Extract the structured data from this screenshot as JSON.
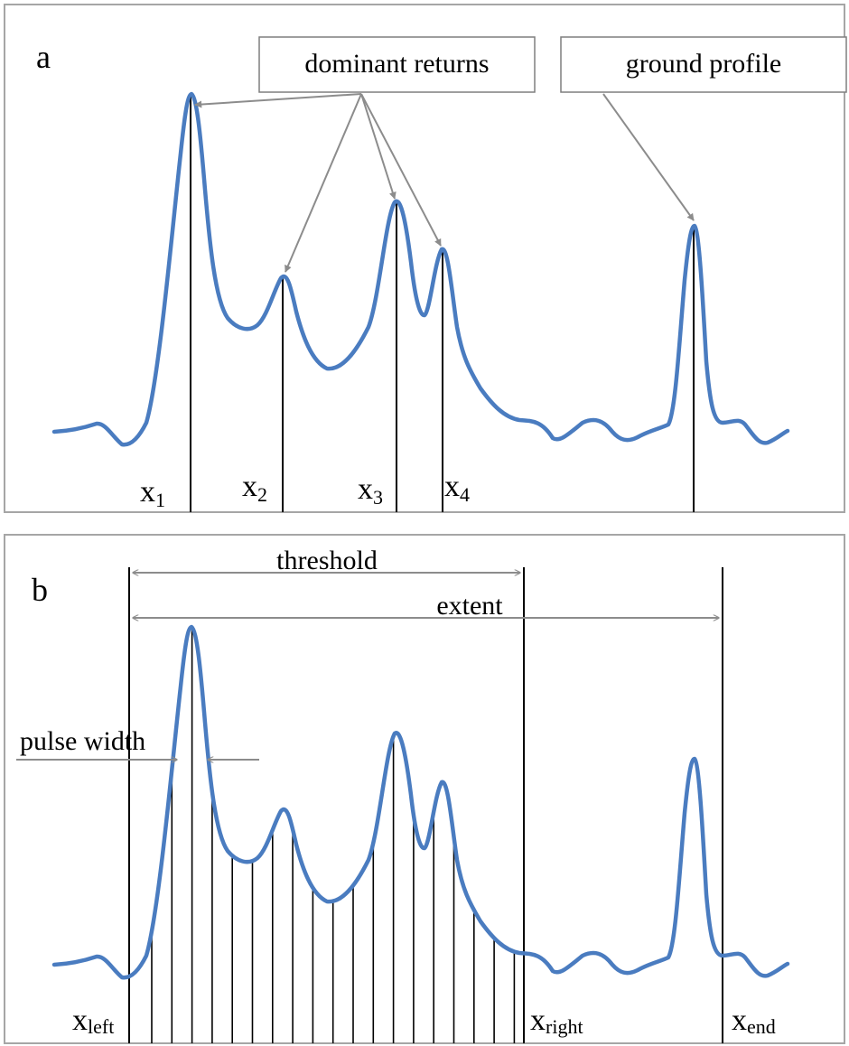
{
  "panel_a": {
    "label": "a",
    "callouts": {
      "dominant": "dominant returns",
      "ground": "ground profile"
    },
    "peaks": [
      {
        "main": "x",
        "sub": "1"
      },
      {
        "main": "x",
        "sub": "2"
      },
      {
        "main": "x",
        "sub": "3"
      },
      {
        "main": "x",
        "sub": "4"
      }
    ]
  },
  "panel_b": {
    "label": "b",
    "threshold": "threshold",
    "extent": "extent",
    "pulse_width": "pulse width",
    "x_left": {
      "main": "x",
      "sub": "left"
    },
    "x_right": {
      "main": "x",
      "sub": "right"
    },
    "x_end": {
      "main": "x",
      "sub": "end"
    }
  },
  "colors": {
    "waveform": "#4a7cc0",
    "arrows": "#8c8c8c",
    "frame": "#a6a6a6"
  }
}
